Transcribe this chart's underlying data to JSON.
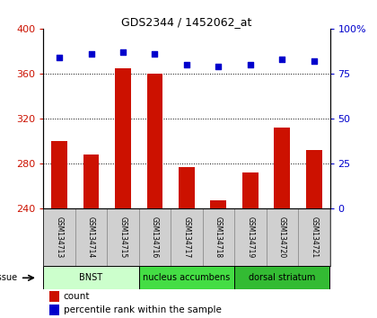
{
  "title": "GDS2344 / 1452062_at",
  "samples": [
    "GSM134713",
    "GSM134714",
    "GSM134715",
    "GSM134716",
    "GSM134717",
    "GSM134718",
    "GSM134719",
    "GSM134720",
    "GSM134721"
  ],
  "counts": [
    300,
    288,
    365,
    360,
    277,
    247,
    272,
    312,
    292
  ],
  "percentiles": [
    84,
    86,
    87,
    86,
    80,
    79,
    80,
    83,
    82
  ],
  "ylim_left": [
    240,
    400
  ],
  "ylim_right": [
    0,
    100
  ],
  "yticks_left": [
    240,
    280,
    320,
    360,
    400
  ],
  "yticks_right": [
    0,
    25,
    50,
    75,
    100
  ],
  "ytick_right_labels": [
    "0",
    "25",
    "50",
    "75",
    "100%"
  ],
  "bar_color": "#cc1100",
  "dot_color": "#0000cc",
  "groups": [
    {
      "label": "BNST",
      "start": 0,
      "end": 3,
      "color": "#ccffcc"
    },
    {
      "label": "nucleus accumbens",
      "start": 3,
      "end": 6,
      "color": "#44dd44"
    },
    {
      "label": "dorsal striatum",
      "start": 6,
      "end": 9,
      "color": "#33bb33"
    }
  ],
  "tissue_label": "tissue",
  "legend_count": "count",
  "legend_percentile": "percentile rank within the sample",
  "grid_ticks": [
    280,
    320,
    360
  ],
  "bar_width": 0.5
}
